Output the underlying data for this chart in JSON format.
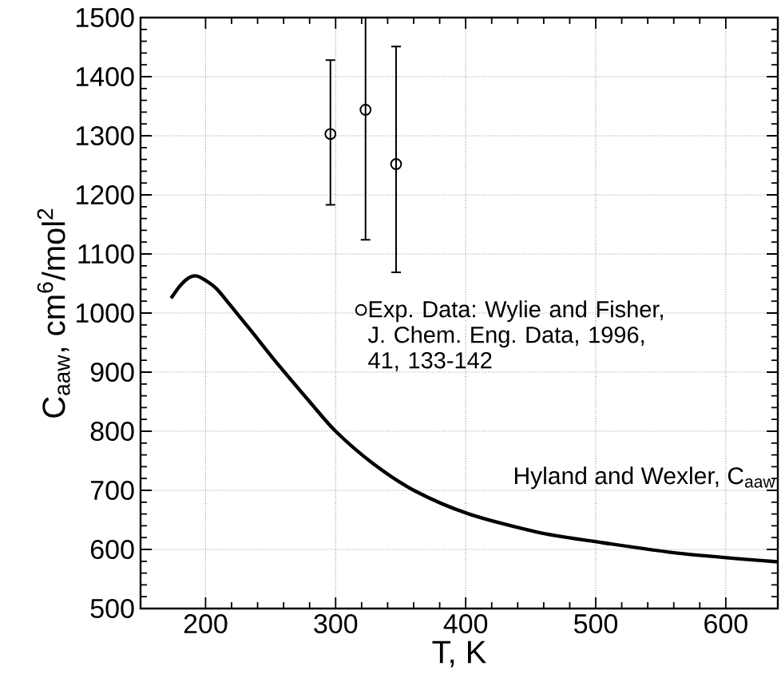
{
  "chart_data": {
    "type": "scatter",
    "xlabel": "T, K",
    "ylabel": "C$_{aaw}$, cm$^{6}$/mol$^{2}$",
    "xlim": [
      150,
      640
    ],
    "xticks": [
      200,
      300,
      400,
      500,
      600
    ],
    "ylim": [
      500,
      1500
    ],
    "yticks": [
      500,
      600,
      700,
      800,
      900,
      1000,
      1100,
      1200,
      1300,
      1400,
      1500
    ],
    "grid": true,
    "legend": "right",
    "marker": "circle",
    "series": [
      {
        "name": "Exp. Data:  Wylie and Fisher, J. Chem. Eng. Data, 1996, 41, 133-142",
        "color": "#000000",
        "x": [
          296,
          323,
          346.5
        ],
        "values": [
          1303,
          1344,
          1252
        ],
        "errors": [
          [
            1183,
            1428
          ],
          [
            1124,
            1500
          ],
          [
            1069,
            1451
          ]
        ]
      },
      {
        "name": "Hyland and Wexler,  C$_{aaw}$",
        "type": "line",
        "color": "#000000",
        "marker": "none",
        "line_style": "solid",
        "x": [
          173.5,
          180,
          186,
          192,
          198,
          208,
          218,
          235,
          255,
          280,
          300,
          329,
          361,
          402.5,
          455.7,
          500.6,
          566,
          640
        ],
        "values": [
          1025,
          1045,
          1058,
          1063,
          1058,
          1042,
          1016,
          970,
          915,
          850,
          800,
          745,
          699,
          660,
          629,
          613,
          593,
          579
        ]
      }
    ]
  }
}
